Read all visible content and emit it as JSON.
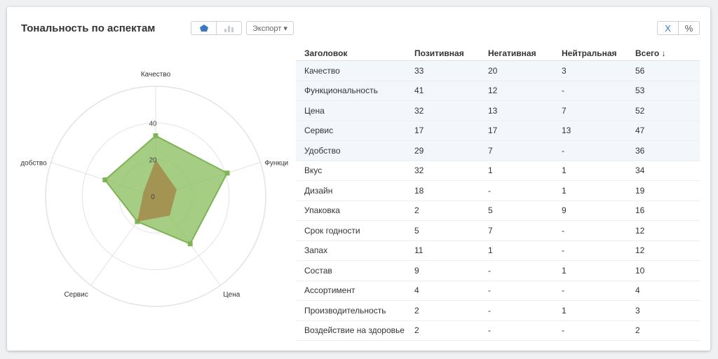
{
  "title": "Тональность по аспектам",
  "toolbar": {
    "view_radar_icon": "radar-chart-icon",
    "view_bar_icon": "bar-chart-icon",
    "export_label": "Экспорт ▾",
    "unit_count_label": "X",
    "unit_percent_label": "%"
  },
  "colors": {
    "positive_fill": "#8cc062",
    "positive_stroke": "#7fb356",
    "negative_fill": "#a38a4a",
    "grid": "#e3e3e3",
    "accent": "#3b78c2"
  },
  "table": {
    "headers": [
      "Заголовок",
      "Позитивная",
      "Негативная",
      "Нейтральная",
      "Всего ↓"
    ],
    "rows": [
      [
        "Качество",
        "33",
        "20",
        "3",
        "56"
      ],
      [
        "Функциональность",
        "41",
        "12",
        "-",
        "53"
      ],
      [
        "Цена",
        "32",
        "13",
        "7",
        "52"
      ],
      [
        "Сервис",
        "17",
        "17",
        "13",
        "47"
      ],
      [
        "Удобство",
        "29",
        "7",
        "-",
        "36"
      ],
      [
        "Вкус",
        "32",
        "1",
        "1",
        "34"
      ],
      [
        "Дизайн",
        "18",
        "-",
        "1",
        "19"
      ],
      [
        "Упаковка",
        "2",
        "5",
        "9",
        "16"
      ],
      [
        "Срок годности",
        "5",
        "7",
        "-",
        "12"
      ],
      [
        "Запах",
        "11",
        "1",
        "-",
        "12"
      ],
      [
        "Состав",
        "9",
        "-",
        "1",
        "10"
      ],
      [
        "Ассортимент",
        "4",
        "-",
        "-",
        "4"
      ],
      [
        "Производительность",
        "2",
        "-",
        "1",
        "3"
      ],
      [
        "Воздействие на здоровье",
        "2",
        "-",
        "-",
        "2"
      ]
    ],
    "highlighted_rows": [
      0,
      1,
      2,
      3,
      4
    ]
  },
  "chart_data": {
    "type": "radar",
    "title": "",
    "axes": [
      "Качество",
      "Функциональность",
      "Цена",
      "Сервис",
      "Удобство"
    ],
    "axis_label_display": [
      "Качество",
      "Функци",
      "Цена",
      "Сервис",
      "добство"
    ],
    "radial_ticks": [
      0,
      20,
      40
    ],
    "radial_range": [
      0,
      60
    ],
    "grid": true,
    "legend": "none",
    "series": [
      {
        "values": [
          33,
          41,
          32,
          17,
          29
        ],
        "color": "#8cc062"
      },
      {
        "values": [
          20,
          12,
          13,
          17,
          7
        ],
        "color": "#a38a4a"
      }
    ]
  }
}
